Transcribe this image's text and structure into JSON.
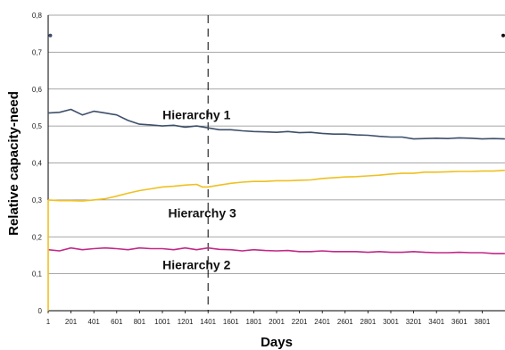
{
  "chart_data": {
    "type": "line",
    "xlabel": "Days",
    "ylabel": "Relative capacity-need",
    "xlim": [
      1,
      4001
    ],
    "ylim": [
      0,
      0.8
    ],
    "y_ticks": [
      "0",
      "0,1",
      "0,2",
      "0,3",
      "0,4",
      "0,5",
      "0,6",
      "0,7",
      "0,8"
    ],
    "x_ticks": [
      "1",
      "201",
      "401",
      "601",
      "801",
      "1001",
      "1201",
      "1401",
      "1601",
      "1801",
      "2001",
      "2201",
      "2401",
      "2601",
      "2801",
      "3001",
      "3201",
      "3401",
      "3601",
      "3801"
    ],
    "grid": true,
    "vertical_marker_day": 1401,
    "series": [
      {
        "name": "Hierarchy 1",
        "color": "#3d4f6a",
        "x": [
          1,
          100,
          200,
          300,
          400,
          500,
          600,
          700,
          800,
          900,
          1000,
          1100,
          1200,
          1300,
          1400,
          1500,
          1600,
          1700,
          1800,
          1900,
          2000,
          2100,
          2200,
          2300,
          2400,
          2500,
          2600,
          2700,
          2800,
          2900,
          3000,
          3100,
          3200,
          3300,
          3400,
          3500,
          3600,
          3700,
          3800,
          3900,
          4000
        ],
        "values": [
          0.535,
          0.537,
          0.545,
          0.53,
          0.54,
          0.535,
          0.53,
          0.515,
          0.505,
          0.503,
          0.5,
          0.502,
          0.497,
          0.5,
          0.495,
          0.49,
          0.49,
          0.487,
          0.485,
          0.484,
          0.483,
          0.485,
          0.482,
          0.483,
          0.48,
          0.478,
          0.478,
          0.476,
          0.475,
          0.472,
          0.47,
          0.47,
          0.465,
          0.466,
          0.467,
          0.466,
          0.468,
          0.467,
          0.465,
          0.466,
          0.465
        ]
      },
      {
        "name": "Hierarchy 3",
        "color": "#efc021",
        "x": [
          1,
          100,
          200,
          300,
          400,
          500,
          600,
          700,
          800,
          900,
          1000,
          1100,
          1200,
          1300,
          1350,
          1400,
          1500,
          1600,
          1700,
          1800,
          1900,
          2000,
          2100,
          2200,
          2300,
          2400,
          2500,
          2600,
          2700,
          2800,
          2900,
          3000,
          3100,
          3200,
          3300,
          3400,
          3500,
          3600,
          3700,
          3800,
          3900,
          4000
        ],
        "values": [
          0.3,
          0.298,
          0.298,
          0.297,
          0.3,
          0.303,
          0.31,
          0.318,
          0.325,
          0.33,
          0.335,
          0.337,
          0.34,
          0.342,
          0.335,
          0.335,
          0.34,
          0.345,
          0.348,
          0.35,
          0.35,
          0.352,
          0.352,
          0.353,
          0.354,
          0.358,
          0.36,
          0.362,
          0.363,
          0.365,
          0.367,
          0.37,
          0.372,
          0.372,
          0.375,
          0.375,
          0.376,
          0.377,
          0.377,
          0.378,
          0.378,
          0.38
        ]
      },
      {
        "name": "Hierarchy 2",
        "color": "#c02a87",
        "x": [
          1,
          100,
          200,
          300,
          400,
          500,
          600,
          700,
          800,
          900,
          1000,
          1100,
          1200,
          1300,
          1400,
          1500,
          1600,
          1700,
          1800,
          1900,
          2000,
          2100,
          2200,
          2300,
          2400,
          2500,
          2600,
          2700,
          2800,
          2900,
          3000,
          3100,
          3200,
          3300,
          3400,
          3500,
          3600,
          3700,
          3800,
          3900,
          4000
        ],
        "values": [
          0.165,
          0.162,
          0.17,
          0.165,
          0.168,
          0.17,
          0.168,
          0.165,
          0.17,
          0.168,
          0.168,
          0.165,
          0.17,
          0.165,
          0.17,
          0.166,
          0.165,
          0.162,
          0.165,
          0.163,
          0.162,
          0.163,
          0.16,
          0.16,
          0.162,
          0.16,
          0.16,
          0.16,
          0.158,
          0.16,
          0.158,
          0.158,
          0.16,
          0.158,
          0.157,
          0.157,
          0.158,
          0.157,
          0.157,
          0.155,
          0.155
        ]
      }
    ],
    "series_label_positions": [
      {
        "name": "Hierarchy 1",
        "x": 1300,
        "y": 0.53
      },
      {
        "name": "Hierarchy 3",
        "x": 1350,
        "y": 0.265
      },
      {
        "name": "Hierarchy 2",
        "x": 1300,
        "y": 0.125
      }
    ],
    "isolated_points": [
      {
        "x": 20,
        "y": 0.745,
        "color": "#3d4f6a"
      },
      {
        "x": 4001,
        "y": 0.745,
        "color": "#111111"
      }
    ]
  }
}
